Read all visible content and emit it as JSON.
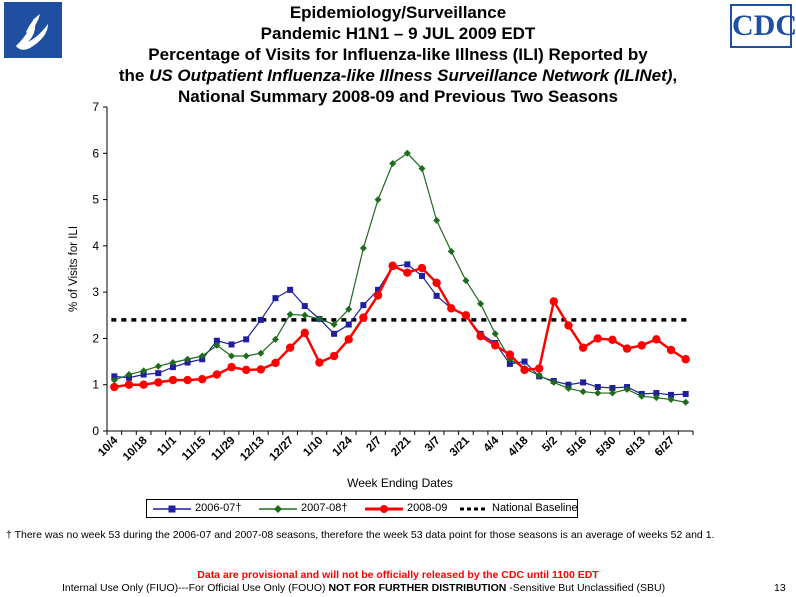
{
  "header": {
    "title_lines": [
      "Epidemiology/Surveillance",
      "Pandemic H1N1 – 9 JUL 2009 EDT",
      "Percentage of Visits for Influenza-like Illness (ILI) Reported by",
      "the US Outpatient Influenza-like Illness Surveillance Network (ILINet),",
      "National Summary 2008-09 and Previous Two Seasons"
    ],
    "title_line4_prefix": "the ",
    "title_line4_italic": "US Outpatient Influenza-like Illness Surveillance Network (ILINet)",
    "title_line4_suffix": ",",
    "right_logo_text": "CDC"
  },
  "chart_data": {
    "type": "line",
    "ylabel": "% of Visits for ILI",
    "xlabel": "Week Ending Dates",
    "ylim": [
      0,
      7
    ],
    "yticks": [
      "0",
      "1",
      "2",
      "3",
      "4",
      "5",
      "6",
      "7"
    ],
    "x_tick_labels": [
      "10/4",
      "10/18",
      "11/1",
      "11/15",
      "11/29",
      "12/13",
      "12/27",
      "1/10",
      "1/24",
      "2/7",
      "2/21",
      "3/7",
      "3/21",
      "4/4",
      "4/18",
      "5/2",
      "5/16",
      "5/30",
      "6/13",
      "6/27"
    ],
    "weeks_count": 40,
    "legend_position": "bottom",
    "series": [
      {
        "name": "2006-07†",
        "color": "#1f1fa0",
        "marker": "square",
        "values": [
          1.18,
          1.15,
          1.22,
          1.25,
          1.38,
          1.48,
          1.55,
          1.95,
          1.87,
          1.98,
          2.4,
          2.87,
          3.05,
          2.7,
          2.42,
          2.1,
          2.3,
          2.72,
          3.05,
          3.55,
          3.6,
          3.35,
          2.92,
          2.65,
          2.48,
          2.1,
          1.9,
          1.45,
          1.5,
          1.18,
          1.08,
          1.0,
          1.05,
          0.95,
          0.93,
          0.95,
          0.8,
          0.82,
          0.78,
          0.8
        ]
      },
      {
        "name": "2007-08†",
        "color": "#1e6b1e",
        "marker": "diamond",
        "values": [
          1.1,
          1.22,
          1.3,
          1.4,
          1.48,
          1.55,
          1.62,
          1.85,
          1.62,
          1.62,
          1.68,
          1.98,
          2.52,
          2.5,
          2.42,
          2.3,
          2.63,
          3.95,
          5.0,
          5.78,
          6.0,
          5.67,
          4.55,
          3.88,
          3.25,
          2.75,
          2.1,
          1.55,
          1.35,
          1.2,
          1.05,
          0.92,
          0.85,
          0.82,
          0.82,
          0.9,
          0.75,
          0.72,
          0.68,
          0.62
        ]
      },
      {
        "name": "2008-09",
        "color": "#ff0000",
        "marker": "circle",
        "values": [
          0.95,
          1.0,
          1.0,
          1.05,
          1.1,
          1.1,
          1.12,
          1.22,
          1.38,
          1.32,
          1.33,
          1.47,
          1.8,
          2.12,
          1.48,
          1.62,
          1.98,
          2.45,
          2.93,
          3.57,
          3.42,
          3.52,
          3.2,
          2.65,
          2.5,
          2.05,
          1.85,
          1.65,
          1.32,
          1.35,
          2.8,
          2.28,
          1.8,
          2.0,
          1.97,
          1.78,
          1.85,
          1.98,
          1.75,
          1.55
        ]
      },
      {
        "name": "National Baseline",
        "color": "#000000",
        "marker": "none",
        "constant": 2.4
      }
    ]
  },
  "footnote": "† There was no week 53 during the 2006-07 and 2007-08 seasons, therefore the week 53 data point for those seasons is an average of weeks 52 and 1.",
  "notice": "Data are provisional and will not be officially released by the CDC until 1100 EDT",
  "footer": {
    "part1": "Internal Use Only (FIUO)---For Official Use Only (FOUO) ",
    "part2": "NOT FOR FURTHER DISTRIBUTION",
    "part3": " -Sensitive But Unclassified (SBU)",
    "page_number": "13"
  }
}
